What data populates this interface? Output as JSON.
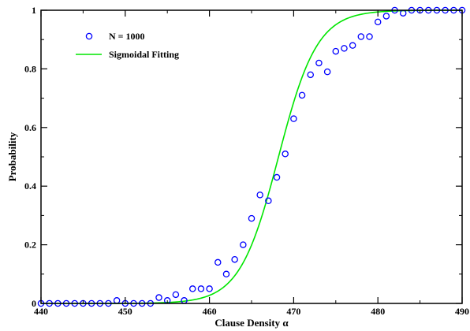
{
  "chart_data": {
    "type": "scatter",
    "title": "",
    "xlabel": "Clause Density α",
    "ylabel": "Probability",
    "xlim": [
      440,
      490
    ],
    "ylim": [
      0,
      1
    ],
    "x_ticks": [
      440,
      450,
      460,
      470,
      480,
      490
    ],
    "x_tick_labels": [
      "440",
      "450",
      "460",
      "470",
      "480",
      "490"
    ],
    "y_ticks": [
      0,
      0.2,
      0.4,
      0.6,
      0.8,
      1
    ],
    "y_tick_labels": [
      "0",
      "0.2",
      "0.4",
      "0.6",
      "0.8",
      "1"
    ],
    "legend_placement": "top-left",
    "grid": false,
    "series": [
      {
        "name": "N = 1000",
        "kind": "points",
        "color": "#0000ff",
        "x": [
          440,
          441,
          442,
          443,
          444,
          445,
          446,
          447,
          448,
          449,
          450,
          451,
          452,
          453,
          454,
          455,
          456,
          457,
          458,
          459,
          460,
          461,
          462,
          463,
          464,
          465,
          466,
          467,
          468,
          469,
          470,
          471,
          472,
          473,
          474,
          475,
          476,
          477,
          478,
          479,
          480,
          481,
          482,
          483,
          484,
          485,
          486,
          487,
          488,
          489,
          490
        ],
        "y": [
          0,
          0,
          0,
          0,
          0,
          0,
          0,
          0,
          0,
          0.01,
          0,
          0,
          0,
          0,
          0.02,
          0.01,
          0.03,
          0.01,
          0.05,
          0.05,
          0.05,
          0.14,
          0.1,
          0.15,
          0.2,
          0.29,
          0.37,
          0.35,
          0.43,
          0.51,
          0.63,
          0.71,
          0.78,
          0.82,
          0.79,
          0.86,
          0.87,
          0.88,
          0.91,
          0.91,
          0.96,
          0.98,
          1,
          0.99,
          1,
          1,
          1,
          1,
          1,
          1,
          1
        ]
      },
      {
        "name": "Sigmoidal Fitting",
        "kind": "line",
        "color": "#00e600",
        "model": "logistic",
        "midpoint": 468.2,
        "scale": 2.3
      }
    ]
  }
}
